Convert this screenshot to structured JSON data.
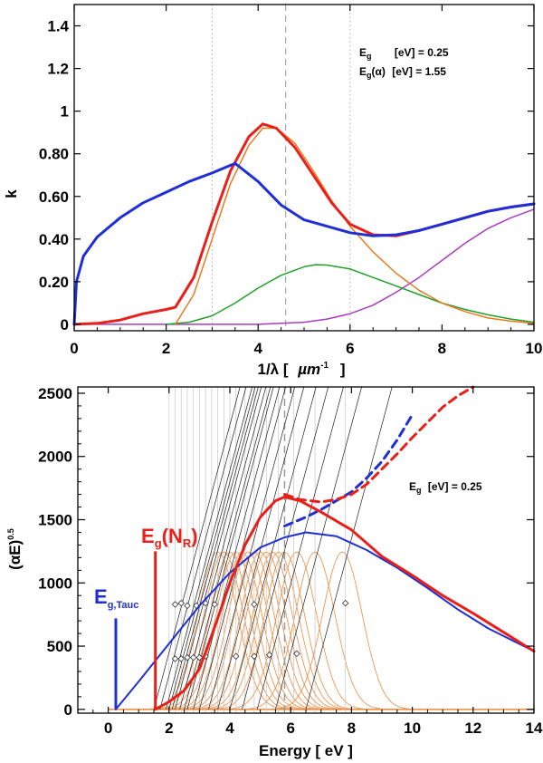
{
  "chart_data": [
    {
      "type": "line",
      "title": "",
      "xlabel": "1/λ [ µm⁻¹ ]",
      "ylabel": "k",
      "xlim": [
        0,
        10
      ],
      "ylim": [
        -0.03,
        1.5
      ],
      "xticks": [
        0,
        2,
        4,
        6,
        8,
        10
      ],
      "xtick_labels": [
        "0",
        "2",
        "4",
        "6",
        "8",
        "10"
      ],
      "yticks": [
        0,
        0.2,
        0.4,
        0.6,
        0.8,
        1.0,
        1.2,
        1.4
      ],
      "ytick_labels": [
        "0",
        "0.20",
        "0.40",
        "0.60",
        "0.80",
        "1",
        "1.2",
        "1.4"
      ],
      "vlines": [
        {
          "x": 3.0,
          "style": "dotted",
          "color": "#aaaaaa"
        },
        {
          "x": 4.6,
          "style": "dashed",
          "color": "#999999"
        },
        {
          "x": 6.0,
          "style": "dotted",
          "color": "#aaaaaa"
        }
      ],
      "annotations": [
        "E_g [eV] = 0.25",
        "E_g(α) [eV] = 1.55"
      ],
      "series": [
        {
          "name": "blue total",
          "color": "#1f2fd6",
          "x": [
            0,
            0.05,
            0.2,
            0.5,
            1.0,
            1.5,
            2.0,
            2.5,
            3.0,
            3.5,
            4.0,
            4.5,
            5.0,
            5.5,
            6.0,
            6.5,
            7.0,
            7.5,
            8.0,
            8.5,
            9.0,
            9.5,
            10.0
          ],
          "y": [
            0.0,
            0.2,
            0.32,
            0.41,
            0.5,
            0.57,
            0.62,
            0.67,
            0.71,
            0.755,
            0.67,
            0.56,
            0.49,
            0.46,
            0.43,
            0.415,
            0.42,
            0.44,
            0.47,
            0.5,
            0.53,
            0.55,
            0.565
          ]
        },
        {
          "name": "red total",
          "color": "#e8201a",
          "x": [
            0,
            0.5,
            1.0,
            1.5,
            2.0,
            2.2,
            2.6,
            3.0,
            3.4,
            3.8,
            4.1,
            4.4,
            4.8,
            5.2,
            5.6,
            6.0,
            6.5,
            7.0,
            7.5,
            8.0,
            8.5,
            9.0,
            9.5,
            10.0
          ],
          "y": [
            0.0,
            0.005,
            0.02,
            0.05,
            0.07,
            0.08,
            0.22,
            0.48,
            0.72,
            0.88,
            0.94,
            0.92,
            0.83,
            0.7,
            0.57,
            0.47,
            0.42,
            0.415,
            0.44,
            0.47,
            0.5,
            0.53,
            0.55,
            0.565
          ]
        },
        {
          "name": "orange",
          "color": "#e87a1e",
          "x": [
            2.2,
            2.6,
            3.0,
            3.4,
            3.8,
            4.1,
            4.4,
            4.8,
            5.2,
            5.6,
            6.0,
            6.5,
            7.0,
            7.5,
            8.0,
            8.5,
            9.0,
            9.5,
            10.0
          ],
          "y": [
            0.0,
            0.14,
            0.4,
            0.66,
            0.84,
            0.92,
            0.92,
            0.85,
            0.72,
            0.58,
            0.46,
            0.34,
            0.24,
            0.16,
            0.1,
            0.06,
            0.03,
            0.015,
            0.005
          ]
        },
        {
          "name": "green",
          "color": "#22a02a",
          "x": [
            2.0,
            2.5,
            3.0,
            3.5,
            4.0,
            4.5,
            5.0,
            5.25,
            5.5,
            6.0,
            6.5,
            7.0,
            7.5,
            8.0,
            8.5,
            9.0,
            9.5,
            10.0
          ],
          "y": [
            0.0,
            0.01,
            0.04,
            0.1,
            0.17,
            0.23,
            0.27,
            0.28,
            0.278,
            0.26,
            0.22,
            0.18,
            0.14,
            0.1,
            0.07,
            0.045,
            0.025,
            0.01
          ]
        },
        {
          "name": "purple",
          "color": "#a83cc0",
          "x": [
            0,
            4.0,
            5.0,
            5.5,
            6.0,
            6.5,
            7.0,
            7.5,
            8.0,
            8.5,
            9.0,
            9.5,
            10.0
          ],
          "y": [
            0.0,
            0.0,
            0.01,
            0.025,
            0.05,
            0.09,
            0.15,
            0.22,
            0.3,
            0.38,
            0.45,
            0.5,
            0.54
          ]
        }
      ]
    },
    {
      "type": "line",
      "title": "",
      "xlabel": "Energy [ eV ]",
      "ylabel": "(αE)^0.5",
      "xlim": [
        -1,
        14
      ],
      "ylim": [
        -30,
        2550
      ],
      "xticks": [
        0,
        2,
        4,
        6,
        8,
        10,
        12,
        14
      ],
      "xtick_labels": [
        "0",
        "2",
        "4",
        "6",
        "8",
        "10",
        "12",
        "14"
      ],
      "yticks": [
        0,
        500,
        1000,
        1500,
        2000,
        2500
      ],
      "ytick_labels": [
        "0",
        "500",
        "1000",
        "1500",
        "2000",
        "2500"
      ],
      "annotations": [
        "E_g [eV] = 0.25"
      ],
      "markers": [
        {
          "label": "E_g(N_R)",
          "x": 1.55,
          "y_top": 1250,
          "color": "#e8201a"
        },
        {
          "label": "E_g,Tauc",
          "x": 0.25,
          "y_top": 720,
          "color": "#1f2fd6"
        }
      ],
      "dashed_vline": {
        "x": 5.8,
        "color": "#999999"
      },
      "gray_vlines": [
        2.0,
        2.2,
        2.4,
        2.6,
        2.8,
        3.0,
        3.2,
        3.4,
        3.6,
        3.8,
        4.0,
        4.2,
        4.5,
        4.8,
        5.2,
        5.6,
        6.1,
        6.8,
        7.8
      ],
      "tangent_lines": {
        "x_start": [
          1.5,
          1.7,
          1.9,
          2.0,
          2.1,
          2.2,
          2.35,
          2.5,
          2.6,
          2.8,
          3.0,
          3.3,
          3.6,
          4.0,
          4.4,
          4.9,
          5.5,
          6.5
        ],
        "slope": 900,
        "color": "#222222"
      },
      "diamonds": [
        {
          "x": 2.2,
          "y": 400
        },
        {
          "x": 2.4,
          "y": 400
        },
        {
          "x": 2.6,
          "y": 410
        },
        {
          "x": 2.8,
          "y": 410
        },
        {
          "x": 3.0,
          "y": 410
        },
        {
          "x": 3.2,
          "y": 420
        },
        {
          "x": 2.2,
          "y": 830
        },
        {
          "x": 2.4,
          "y": 840
        },
        {
          "x": 2.6,
          "y": 820
        },
        {
          "x": 2.9,
          "y": 820
        },
        {
          "x": 3.2,
          "y": 840
        },
        {
          "x": 3.5,
          "y": 830
        },
        {
          "x": 4.2,
          "y": 420
        },
        {
          "x": 4.8,
          "y": 420
        },
        {
          "x": 5.3,
          "y": 430
        },
        {
          "x": 6.2,
          "y": 440
        },
        {
          "x": 4.8,
          "y": 830
        },
        {
          "x": 7.8,
          "y": 840
        }
      ],
      "gaussians": {
        "centers": [
          3.6,
          3.8,
          4.0,
          4.2,
          4.4,
          4.6,
          4.8,
          5.0,
          5.2,
          5.4,
          5.6,
          5.8,
          6.2,
          6.8,
          7.7
        ],
        "amplitude": 1245,
        "sigma": 0.65,
        "color": "#f08a3c"
      },
      "series": [
        {
          "name": "blue",
          "color": "#1f2fd6",
          "x": [
            0.25,
            1.0,
            2.0,
            3.0,
            4.0,
            5.0,
            5.8,
            6.5,
            7.5,
            8.5,
            9.5,
            10.5,
            11.5,
            12.5,
            14.0
          ],
          "y": [
            0,
            220,
            520,
            820,
            1080,
            1280,
            1360,
            1400,
            1370,
            1260,
            1120,
            960,
            790,
            640,
            460
          ]
        },
        {
          "name": "blue dashed",
          "color": "#1f2fd6",
          "dashed": true,
          "x": [
            5.8,
            6.5,
            7.0,
            7.5,
            8.0,
            8.5,
            9.0,
            9.5,
            10.0
          ],
          "y": [
            1450,
            1520,
            1580,
            1650,
            1720,
            1830,
            1960,
            2130,
            2330
          ]
        },
        {
          "name": "red",
          "color": "#e8201a",
          "x": [
            1.55,
            2.0,
            2.5,
            3.0,
            3.5,
            4.0,
            4.5,
            5.0,
            5.5,
            5.8,
            6.3,
            7.0,
            8.0,
            9.0,
            10.0,
            11.0,
            12.0,
            13.0,
            14.0
          ],
          "y": [
            0,
            60,
            150,
            320,
            650,
            1000,
            1300,
            1520,
            1650,
            1680,
            1650,
            1560,
            1420,
            1210,
            1060,
            900,
            760,
            610,
            460
          ]
        },
        {
          "name": "red dashed",
          "color": "#e8201a",
          "dashed": true,
          "x": [
            5.8,
            6.3,
            7.0,
            7.5,
            8.0,
            8.5,
            9.0,
            9.5,
            10.0,
            10.5,
            11.0,
            11.5,
            12.0
          ],
          "y": [
            1700,
            1660,
            1640,
            1660,
            1700,
            1780,
            1900,
            2020,
            2150,
            2270,
            2390,
            2480,
            2550
          ]
        }
      ]
    }
  ],
  "labels": {
    "top_eg_a": "E",
    "top_eg_a_sub": "g",
    "top_eg_a_rest": "[eV] = 0.25",
    "top_eg_b": "E",
    "top_eg_b_sub": "g",
    "top_eg_b_mid": "(α)",
    "top_eg_b_rest": "[eV] = 1.55",
    "top_ylabel": "k",
    "top_xlabel_a": "1/λ [",
    "top_xlabel_mu": "µm",
    "top_xlabel_sup": "-1",
    "top_xlabel_b": "]",
    "bot_eg": "E",
    "bot_eg_sub": "g",
    "bot_eg_rest": "[eV] =  0.25",
    "bot_ylabel": "(αE)",
    "bot_ylabel_sup": "0.5",
    "bot_xlabel": "Energy [ eV ]",
    "red_marker_E": "E",
    "red_marker_sub": "g",
    "red_marker_rest": "(N",
    "red_marker_sub2": "R",
    "red_marker_end": ")",
    "blue_marker_E": "E",
    "blue_marker_sub": "g,Tauc"
  }
}
